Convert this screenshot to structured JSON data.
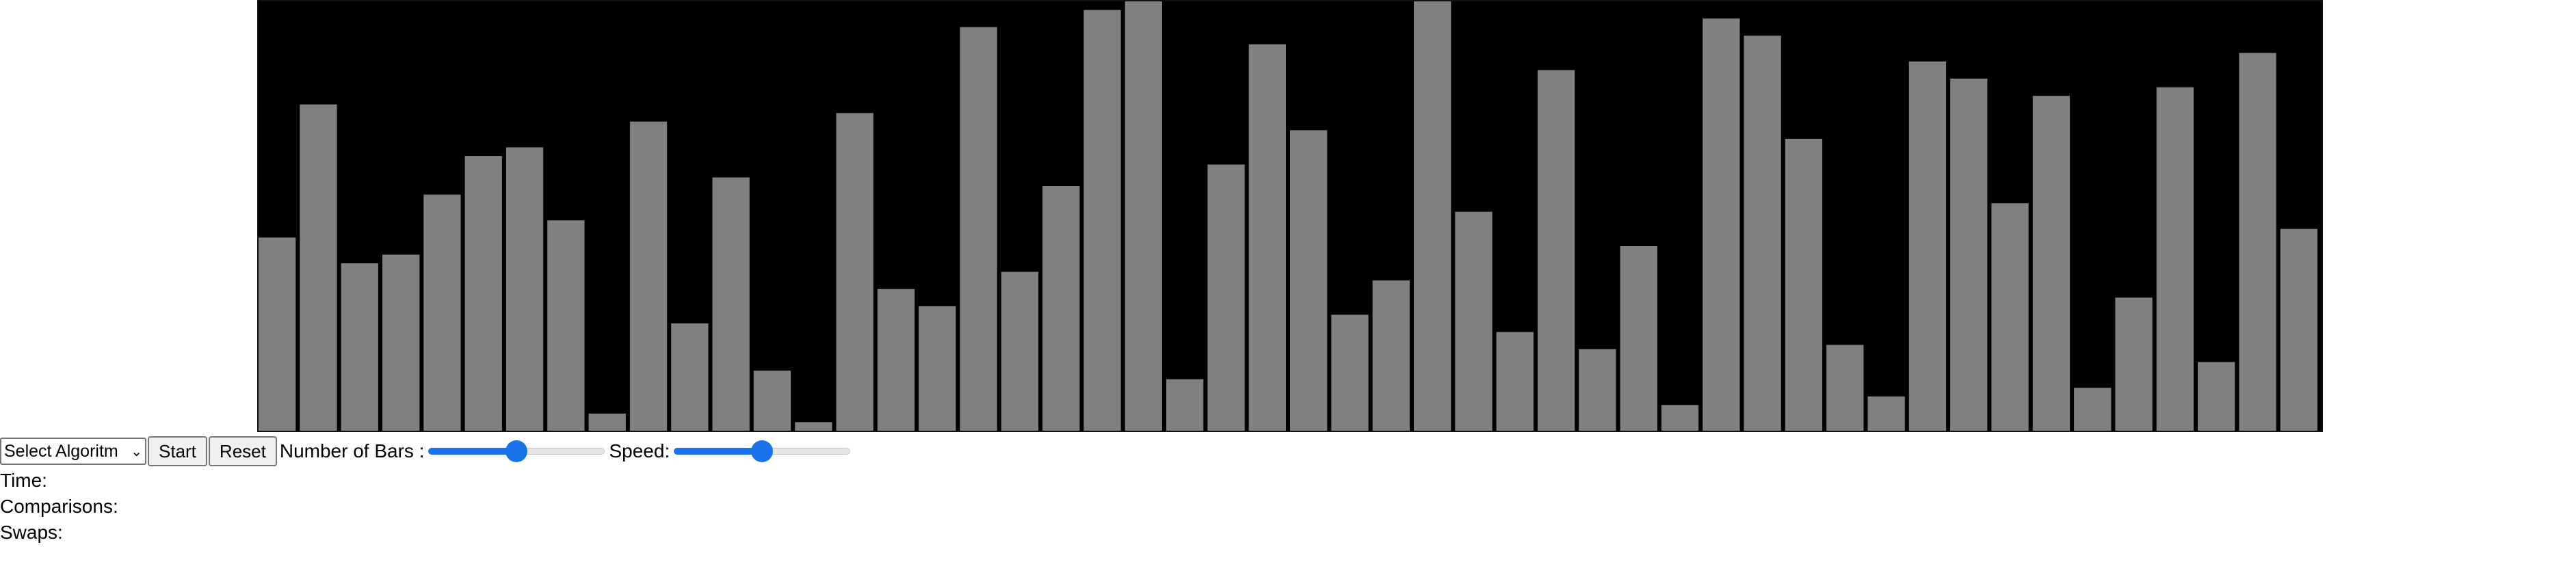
{
  "visualizer": {
    "background_color": "#000000",
    "bar_color": "#808080",
    "bar_values": [
      45,
      76,
      39,
      41,
      55,
      64,
      66,
      49,
      4,
      72,
      25,
      59,
      14,
      2,
      74,
      33,
      29,
      94,
      37,
      57,
      98,
      100,
      12,
      62,
      90,
      70,
      27,
      35,
      100,
      51,
      23,
      84,
      19,
      43,
      6,
      96,
      92,
      68,
      20,
      8,
      86,
      82,
      53,
      78,
      10,
      31,
      80,
      16,
      88,
      47
    ]
  },
  "controls": {
    "algorithm_select": {
      "value": "Select Algoritm"
    },
    "start_button": "Start",
    "reset_button": "Reset",
    "bars_label": "Number of Bars :",
    "bars_slider": {
      "value": 50
    },
    "speed_label": "Speed:",
    "speed_slider": {
      "value": 50
    }
  },
  "stats": {
    "time_label": "Time:",
    "comparisons_label": "Comparisons:",
    "swaps_label": "Swaps:"
  }
}
